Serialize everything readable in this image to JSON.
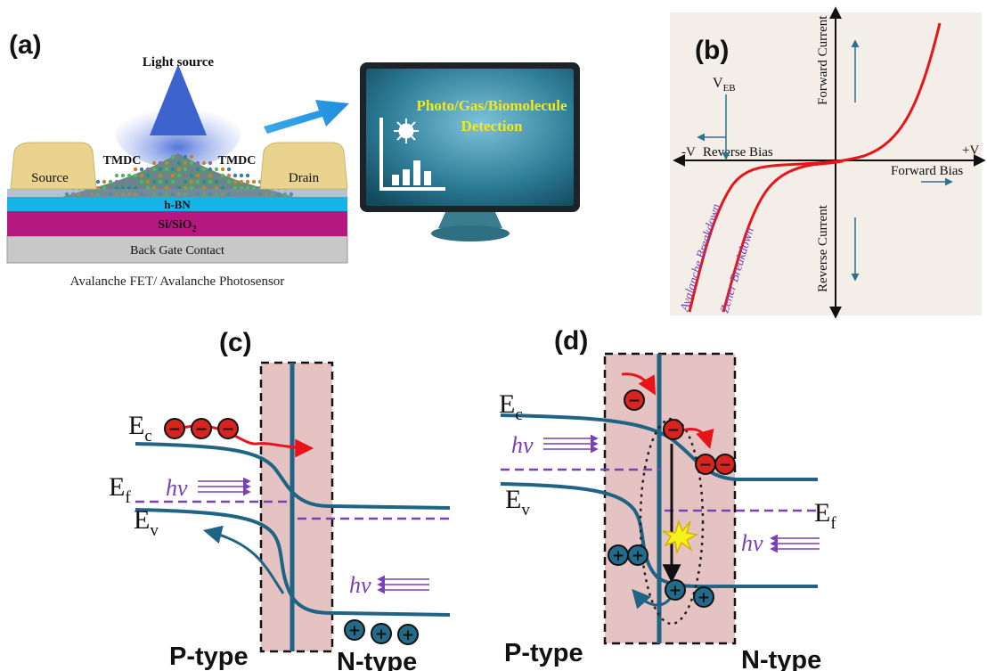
{
  "panel_a": {
    "label": "(a)",
    "light_source": "Light source",
    "source": "Source",
    "drain": "Drain",
    "tmdc_left": "TMDC",
    "tmdc_right": "TMDC",
    "hbn": "h-BN",
    "sio2_main": "Si/SiO",
    "sio2_sub": "2",
    "back_gate": "Back Gate Contact",
    "caption": "Avalanche FET/ Avalanche Photosensor",
    "monitor_line1": "Photo/Gas/Biomolecule",
    "monitor_line2": "Detection",
    "colors": {
      "hbn": "#16b3e8",
      "sio2": "#b5197f",
      "back_gate": "#c8c8c8",
      "contact": "#e9d38f",
      "monitor_text": "#f2e81a"
    }
  },
  "panel_b": {
    "label": "(b)",
    "veb_main": "V",
    "veb_sub": "EB",
    "neg_v": "-V",
    "pos_v": "+V",
    "reverse_bias": "Reverse Bias",
    "forward_bias": "Forward Bias",
    "forward_current": "Forward Current",
    "reverse_current": "Reverse Current",
    "avalanche": "Avalanche Breakdown",
    "zener": "Zener Breakdown",
    "colors": {
      "curve": "#e8141a",
      "label": "#7a3fb5",
      "arrow": "#2f6f90"
    }
  },
  "panel_c": {
    "label": "(c)",
    "ec_main": "E",
    "ec_sub": "c",
    "ef_main": "E",
    "ef_sub": "f",
    "ev_main": "E",
    "ev_sub": "v",
    "hv_top": "hv",
    "hv_bottom": "hv",
    "p_type": "P-type",
    "n_type": "N-type"
  },
  "panel_d": {
    "label": "(d)",
    "ec_main": "E",
    "ec_sub": "c",
    "ev_main": "E",
    "ev_sub": "v",
    "ef_main": "E",
    "ef_sub": "f",
    "hv_left": "hv",
    "hv_right": "hv",
    "p_type": "P-type",
    "n_type": "N-type"
  },
  "carriers": {
    "electron_sign": "−",
    "hole_sign": "+"
  },
  "colors": {
    "band": "#1f6485",
    "fermi": "#7b3fb6",
    "depletion": "#e6c3c3",
    "electron": "#d8241f",
    "hole": "#236b8a",
    "arrow_red": "#e8141a"
  }
}
